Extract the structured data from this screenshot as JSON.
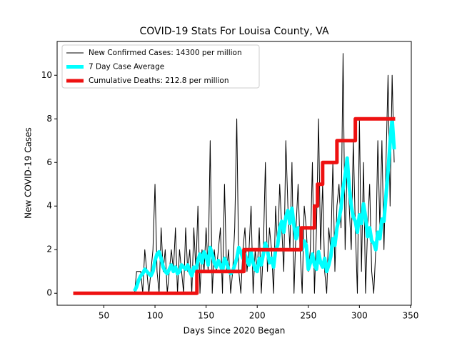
{
  "chart_data": {
    "type": "line",
    "title": "COVID-19 Stats For Louisa County, VA",
    "xlabel": "Days Since 2020 Began",
    "ylabel": "New COVID-19 Cases",
    "xlim": [
      4.25,
      350.75
    ],
    "ylim": [
      -0.55,
      11.55
    ],
    "xticks": [
      50,
      100,
      150,
      200,
      250,
      300,
      350
    ],
    "yticks": [
      0,
      2,
      4,
      6,
      8,
      10
    ],
    "legend": "upper left",
    "series": [
      {
        "name": "New Confirmed Cases: 14300 per million",
        "color": "#000000",
        "width": 1,
        "x": [
          80,
          82,
          84,
          86,
          88,
          90,
          92,
          94,
          96,
          98,
          100,
          102,
          104,
          106,
          108,
          110,
          112,
          114,
          116,
          118,
          120,
          122,
          124,
          126,
          128,
          130,
          132,
          134,
          136,
          138,
          140,
          142,
          144,
          146,
          148,
          150,
          152,
          154,
          156,
          158,
          160,
          162,
          164,
          166,
          168,
          170,
          172,
          174,
          176,
          178,
          180,
          182,
          184,
          186,
          188,
          190,
          192,
          194,
          196,
          198,
          200,
          202,
          204,
          206,
          208,
          210,
          212,
          214,
          216,
          218,
          220,
          222,
          224,
          226,
          228,
          230,
          232,
          234,
          236,
          238,
          240,
          242,
          244,
          246,
          248,
          250,
          252,
          254,
          256,
          258,
          260,
          262,
          264,
          266,
          268,
          270,
          272,
          274,
          276,
          278,
          280,
          282,
          284,
          286,
          288,
          290,
          292,
          294,
          296,
          298,
          300,
          302,
          304,
          306,
          308,
          310,
          312,
          314,
          316,
          318,
          320,
          322,
          324,
          326,
          328,
          330,
          332,
          334
        ],
        "values": [
          0,
          1,
          1,
          1,
          0,
          2,
          1,
          0,
          1,
          2,
          5,
          1,
          0,
          3,
          1,
          2,
          0,
          1,
          2,
          1,
          3,
          0,
          2,
          1,
          0,
          3,
          1,
          2,
          0,
          3,
          1,
          4,
          0,
          2,
          1,
          3,
          1,
          7,
          0,
          2,
          1,
          2,
          3,
          0,
          5,
          1,
          2,
          0,
          1,
          3,
          8,
          1,
          0,
          2,
          3,
          1,
          2,
          4,
          0,
          2,
          1,
          3,
          0,
          2,
          6,
          1,
          3,
          2,
          0,
          4,
          2,
          5,
          3,
          1,
          7,
          4,
          2,
          6,
          0,
          3,
          5,
          2,
          0,
          4,
          3,
          1,
          2,
          6,
          0,
          3,
          8,
          2,
          5,
          1,
          0,
          3,
          2,
          6,
          1,
          4,
          5,
          3,
          11,
          2,
          6,
          4,
          2,
          7,
          3,
          0,
          8,
          1,
          6,
          0,
          3,
          5,
          1,
          0,
          2,
          7,
          3,
          7,
          2,
          6,
          10,
          4,
          10,
          6
        ]
      },
      {
        "name": "7 Day Case Average",
        "color": "#00ffff",
        "width": 5,
        "x": [
          80,
          82,
          84,
          86,
          88,
          90,
          92,
          94,
          96,
          98,
          100,
          102,
          104,
          106,
          108,
          110,
          112,
          114,
          116,
          118,
          120,
          122,
          124,
          126,
          128,
          130,
          132,
          134,
          136,
          138,
          140,
          142,
          144,
          146,
          148,
          150,
          152,
          154,
          156,
          158,
          160,
          162,
          164,
          166,
          168,
          170,
          172,
          174,
          176,
          178,
          180,
          182,
          184,
          186,
          188,
          190,
          192,
          194,
          196,
          198,
          200,
          202,
          204,
          206,
          208,
          210,
          212,
          214,
          216,
          218,
          220,
          222,
          224,
          226,
          228,
          230,
          232,
          234,
          236,
          238,
          240,
          242,
          244,
          246,
          248,
          250,
          252,
          254,
          256,
          258,
          260,
          262,
          264,
          266,
          268,
          270,
          272,
          274,
          276,
          278,
          280,
          282,
          284,
          286,
          288,
          290,
          292,
          294,
          296,
          298,
          300,
          302,
          304,
          306,
          308,
          310,
          312,
          314,
          316,
          318,
          320,
          322,
          324,
          326,
          328,
          330,
          332,
          334
        ],
        "values": [
          0.1,
          0.3,
          0.6,
          0.8,
          0.9,
          1.1,
          1.0,
          0.9,
          0.8,
          1.0,
          1.5,
          1.8,
          1.9,
          1.6,
          1.2,
          1.0,
          0.9,
          1.1,
          1.3,
          1.0,
          1.2,
          0.9,
          1.0,
          1.3,
          1.2,
          1.1,
          1.3,
          1.0,
          0.8,
          1.2,
          1.0,
          1.5,
          1.8,
          1.4,
          1.9,
          1.7,
          1.3,
          2.1,
          1.8,
          1.4,
          1.2,
          1.5,
          1.3,
          1.0,
          1.6,
          1.4,
          1.1,
          0.9,
          1.0,
          1.3,
          1.6,
          2.1,
          1.9,
          1.6,
          1.8,
          1.5,
          1.3,
          1.9,
          1.4,
          1.1,
          1.0,
          1.6,
          1.3,
          1.8,
          2.3,
          2.0,
          1.4,
          1.6,
          1.2,
          2.0,
          2.2,
          3.0,
          3.3,
          2.8,
          3.5,
          3.8,
          3.2,
          3.9,
          3.1,
          2.5,
          3.0,
          2.7,
          2.0,
          2.4,
          2.2,
          1.1,
          1.4,
          1.8,
          1.3,
          1.1,
          1.9,
          1.4,
          1.2,
          1.6,
          1.0,
          1.3,
          1.7,
          2.5,
          2.2,
          3.0,
          3.4,
          3.9,
          4.8,
          5.4,
          6.2,
          4.9,
          4.0,
          3.5,
          3.3,
          2.8,
          3.6,
          3.2,
          4.1,
          3.5,
          2.6,
          3.0,
          2.4,
          2.3,
          2.0,
          2.8,
          2.5,
          3.4,
          3.3,
          4.5,
          5.6,
          6.9,
          8.0,
          6.6
        ]
      },
      {
        "name": "Cumulative Deaths: 212.8 per million",
        "color": "#ee1111",
        "width": 5,
        "x": [
          20,
          141,
          141,
          187,
          187,
          243,
          243,
          256,
          256,
          259,
          259,
          264,
          264,
          278,
          278,
          296,
          296,
          335
        ],
        "values": [
          0,
          0,
          1,
          1,
          2,
          2,
          3,
          3,
          4,
          4,
          5,
          5,
          6,
          6,
          7,
          7,
          8,
          8
        ]
      }
    ]
  }
}
